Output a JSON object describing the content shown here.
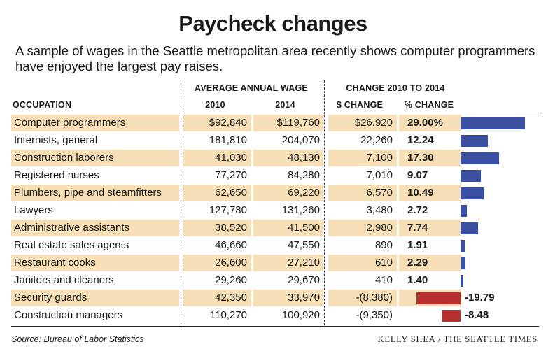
{
  "title": "Paycheck changes",
  "subtitle": "A sample of wages in the Seattle metropolitan area recently shows computer programmers have enjoyed the largest pay raises.",
  "headers": {
    "occupation": "OCCUPATION",
    "avg_wage": "AVERAGE ANNUAL WAGE",
    "change": "CHANGE 2010 TO 2014",
    "y2010": "2010",
    "y2014": "2014",
    "dollar_change": "$ CHANGE",
    "pct_change": "% CHANGE"
  },
  "footer": {
    "source": "Source: Bureau of Labor Statistics",
    "credit": "KELLY SHEA / THE SEATTLE TIMES"
  },
  "colors": {
    "positive": "#3b4fa0",
    "negative": "#b8302e",
    "stripe": "#f6dfb6"
  },
  "chart_data": {
    "type": "table",
    "title": "Paycheck changes",
    "columns": [
      "OCCUPATION",
      "2010",
      "2014",
      "$ CHANGE",
      "% CHANGE"
    ],
    "rows": [
      {
        "occupation": "Computer programmers",
        "w2010": "$92,840",
        "w2014": "$119,760",
        "dchange": "$26,920",
        "pct_label": "29.00%",
        "pct": 29.0
      },
      {
        "occupation": "Internists, general",
        "w2010": "181,810",
        "w2014": "204,070",
        "dchange": "22,260",
        "pct_label": "12.24",
        "pct": 12.24
      },
      {
        "occupation": "Construction laborers",
        "w2010": "41,030",
        "w2014": "48,130",
        "dchange": "7,100",
        "pct_label": "17.30",
        "pct": 17.3
      },
      {
        "occupation": "Registered nurses",
        "w2010": "77,270",
        "w2014": "84,280",
        "dchange": "7,010",
        "pct_label": "9.07",
        "pct": 9.07
      },
      {
        "occupation": "Plumbers, pipe and steamfitters",
        "w2010": "62,650",
        "w2014": "69,220",
        "dchange": "6,570",
        "pct_label": "10.49",
        "pct": 10.49
      },
      {
        "occupation": "Lawyers",
        "w2010": "127,780",
        "w2014": "131,260",
        "dchange": "3,480",
        "pct_label": "2.72",
        "pct": 2.72
      },
      {
        "occupation": "Administrative assistants",
        "w2010": "38,520",
        "w2014": "41,500",
        "dchange": "2,980",
        "pct_label": "7.74",
        "pct": 7.74
      },
      {
        "occupation": "Real estate sales agents",
        "w2010": "46,660",
        "w2014": "47,550",
        "dchange": "890",
        "pct_label": "1.91",
        "pct": 1.91
      },
      {
        "occupation": "Restaurant cooks",
        "w2010": "26,600",
        "w2014": "27,210",
        "dchange": "610",
        "pct_label": "2.29",
        "pct": 2.29
      },
      {
        "occupation": "Janitors and cleaners",
        "w2010": "29,260",
        "w2014": "29,670",
        "dchange": "410",
        "pct_label": "1.40",
        "pct": 1.4
      },
      {
        "occupation": "Security guards",
        "w2010": "42,350",
        "w2014": "33,970",
        "dchange": "-(8,380)",
        "pct_label": "-19.79",
        "pct": -19.79
      },
      {
        "occupation": "Construction managers",
        "w2010": "110,270",
        "w2014": "100,920",
        "dchange": "-(9,350)",
        "pct_label": "-8.48",
        "pct": -8.48
      }
    ]
  }
}
